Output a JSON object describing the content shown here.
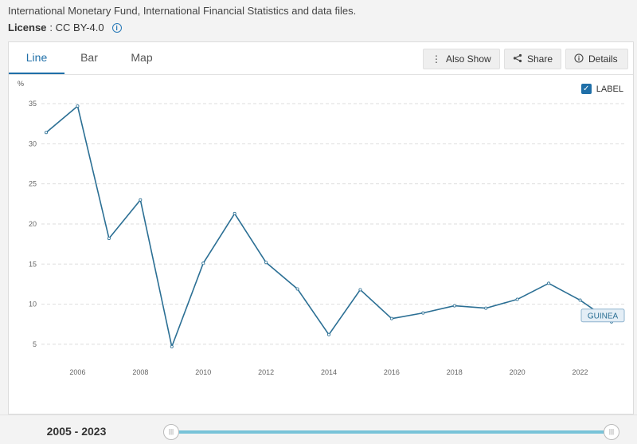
{
  "source": "International Monetary Fund, International Financial Statistics and data files.",
  "license": {
    "label": "License",
    "value": " : CC BY-4.0"
  },
  "tabs": [
    {
      "label": "Line",
      "active": true
    },
    {
      "label": "Bar",
      "active": false
    },
    {
      "label": "Map",
      "active": false
    }
  ],
  "actions": {
    "also_show": "Also Show",
    "share": "Share",
    "details": "Details"
  },
  "label_toggle": {
    "text": "LABEL",
    "checked": true
  },
  "range": {
    "text": "2005 - 2023"
  },
  "colors": {
    "line": "#2b6f94",
    "accent": "#1f6fa8",
    "slider": "#78c3d8",
    "grid": "#dddddd"
  },
  "chart_data": {
    "type": "line",
    "ylabel": "%",
    "ylim": [
      3,
      36
    ],
    "xlim": [
      2005,
      2023
    ],
    "yticks": [
      5,
      10,
      15,
      20,
      25,
      30,
      35
    ],
    "xticks": [
      2006,
      2008,
      2010,
      2012,
      2014,
      2016,
      2018,
      2020,
      2022
    ],
    "grid": true,
    "series": [
      {
        "name": "GUINEA",
        "x": [
          2005,
          2006,
          2007,
          2008,
          2009,
          2010,
          2011,
          2012,
          2013,
          2014,
          2015,
          2016,
          2017,
          2018,
          2019,
          2020,
          2021,
          2022,
          2023
        ],
        "values": [
          31.4,
          34.7,
          18.2,
          23.0,
          4.7,
          15.1,
          21.3,
          15.2,
          11.9,
          6.2,
          11.8,
          8.2,
          8.9,
          9.8,
          9.5,
          10.6,
          12.6,
          10.5,
          7.8
        ]
      }
    ]
  }
}
